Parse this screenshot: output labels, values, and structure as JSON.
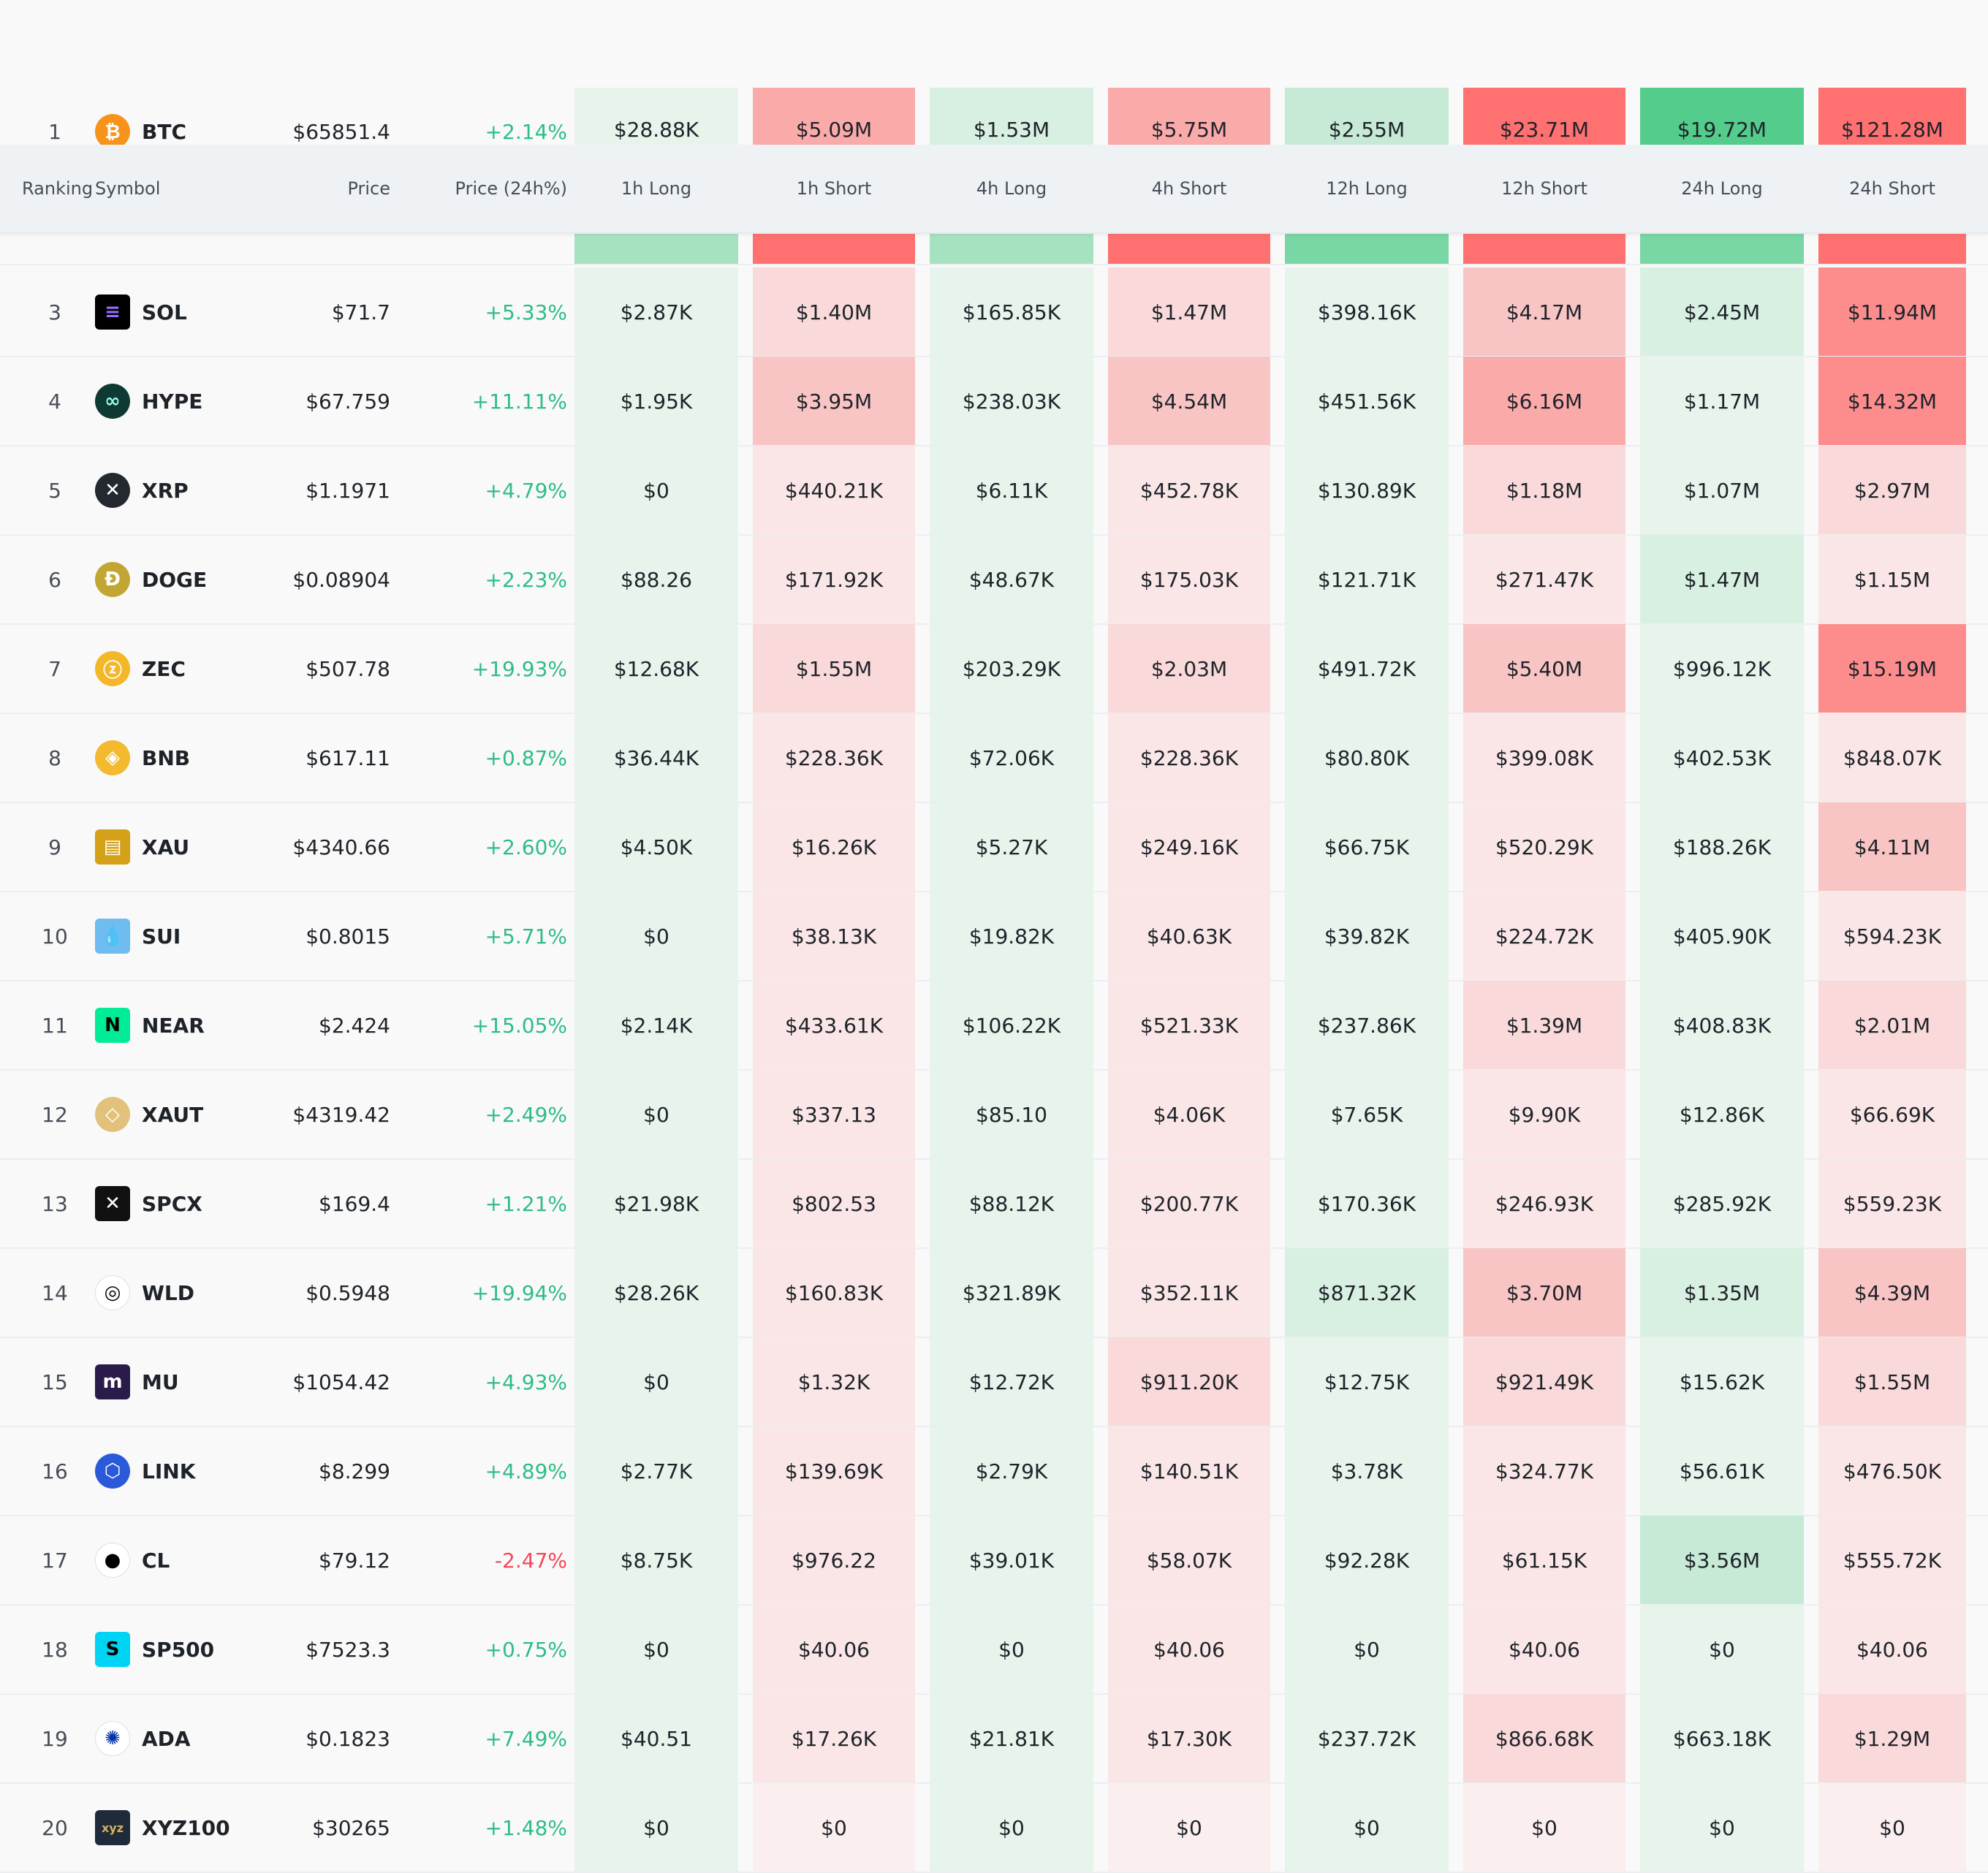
{
  "columns": {
    "ranking": "Ranking",
    "symbol": "Symbol",
    "price": "Price",
    "change": "Price (24h%)",
    "h1_long": "1h Long",
    "h1_short": "1h Short",
    "h4_long": "4h Long",
    "h4_short": "4h Short",
    "h12_long": "12h Long",
    "h12_short": "12h Short",
    "h24_long": "24h Long",
    "h24_short": "24h Short"
  },
  "colors": {
    "positive": "#2ebd85",
    "negative": "#f6465d",
    "long_light": "#e8f5ee",
    "short_light": "#fce8e8",
    "long_strong": "#54cd8c",
    "short_strong": "#ff7070"
  },
  "rows": [
    {
      "rank": "1",
      "symbol": "BTC",
      "icon": "bitcoin-icon",
      "price": "$65851.4",
      "change": "+2.14%",
      "dir": "up",
      "values": [
        "$28.88K",
        "$5.09M",
        "$1.53M",
        "$5.75M",
        "$2.55M",
        "$23.71M",
        "$19.72M",
        "$121.28M"
      ],
      "levels": [
        1,
        4,
        2,
        4,
        3,
        6,
        6,
        6
      ]
    },
    {
      "rank": "",
      "symbol": "",
      "icon": "ethereum-icon",
      "price": "",
      "change": "",
      "dir": "up",
      "values": [
        "",
        "",
        "",
        "",
        "",
        "",
        "",
        ""
      ],
      "levels": [
        4,
        6,
        4,
        6,
        5,
        6,
        5,
        6
      ]
    },
    {
      "rank": "3",
      "symbol": "SOL",
      "icon": "solana-icon",
      "price": "$71.7",
      "change": "+5.33%",
      "dir": "up",
      "values": [
        "$2.87K",
        "$1.40M",
        "$165.85K",
        "$1.47M",
        "$398.16K",
        "$4.17M",
        "$2.45M",
        "$11.94M"
      ],
      "levels": [
        1,
        2,
        1,
        2,
        1,
        3,
        2,
        5
      ]
    },
    {
      "rank": "4",
      "symbol": "HYPE",
      "icon": "hyperliquid-icon",
      "price": "$67.759",
      "change": "+11.11%",
      "dir": "up",
      "values": [
        "$1.95K",
        "$3.95M",
        "$238.03K",
        "$4.54M",
        "$451.56K",
        "$6.16M",
        "$1.17M",
        "$14.32M"
      ],
      "levels": [
        1,
        3,
        1,
        3,
        1,
        4,
        1,
        5
      ]
    },
    {
      "rank": "5",
      "symbol": "XRP",
      "icon": "xrp-icon",
      "price": "$1.1971",
      "change": "+4.79%",
      "dir": "up",
      "values": [
        "$0",
        "$440.21K",
        "$6.11K",
        "$452.78K",
        "$130.89K",
        "$1.18M",
        "$1.07M",
        "$2.97M"
      ],
      "levels": [
        1,
        1,
        1,
        1,
        1,
        2,
        1,
        2
      ]
    },
    {
      "rank": "6",
      "symbol": "DOGE",
      "icon": "dogecoin-icon",
      "price": "$0.08904",
      "change": "+2.23%",
      "dir": "up",
      "values": [
        "$88.26",
        "$171.92K",
        "$48.67K",
        "$175.03K",
        "$121.71K",
        "$271.47K",
        "$1.47M",
        "$1.15M"
      ],
      "levels": [
        1,
        1,
        1,
        1,
        1,
        1,
        2,
        1
      ]
    },
    {
      "rank": "7",
      "symbol": "ZEC",
      "icon": "zcash-icon",
      "price": "$507.78",
      "change": "+19.93%",
      "dir": "up",
      "values": [
        "$12.68K",
        "$1.55M",
        "$203.29K",
        "$2.03M",
        "$491.72K",
        "$5.40M",
        "$996.12K",
        "$15.19M"
      ],
      "levels": [
        1,
        2,
        1,
        2,
        1,
        3,
        1,
        5
      ]
    },
    {
      "rank": "8",
      "symbol": "BNB",
      "icon": "bnb-icon",
      "price": "$617.11",
      "change": "+0.87%",
      "dir": "up",
      "values": [
        "$36.44K",
        "$228.36K",
        "$72.06K",
        "$228.36K",
        "$80.80K",
        "$399.08K",
        "$402.53K",
        "$848.07K"
      ],
      "levels": [
        1,
        1,
        1,
        1,
        1,
        1,
        1,
        1
      ]
    },
    {
      "rank": "9",
      "symbol": "XAU",
      "icon": "gold-bars-icon",
      "price": "$4340.66",
      "change": "+2.60%",
      "dir": "up",
      "values": [
        "$4.50K",
        "$16.26K",
        "$5.27K",
        "$249.16K",
        "$66.75K",
        "$520.29K",
        "$188.26K",
        "$4.11M"
      ],
      "levels": [
        1,
        1,
        1,
        1,
        1,
        1,
        1,
        3
      ]
    },
    {
      "rank": "10",
      "symbol": "SUI",
      "icon": "sui-drop-icon",
      "price": "$0.8015",
      "change": "+5.71%",
      "dir": "up",
      "values": [
        "$0",
        "$38.13K",
        "$19.82K",
        "$40.63K",
        "$39.82K",
        "$224.72K",
        "$405.90K",
        "$594.23K"
      ],
      "levels": [
        1,
        1,
        1,
        1,
        1,
        1,
        1,
        1
      ]
    },
    {
      "rank": "11",
      "symbol": "NEAR",
      "icon": "near-icon",
      "price": "$2.424",
      "change": "+15.05%",
      "dir": "up",
      "values": [
        "$2.14K",
        "$433.61K",
        "$106.22K",
        "$521.33K",
        "$237.86K",
        "$1.39M",
        "$408.83K",
        "$2.01M"
      ],
      "levels": [
        1,
        1,
        1,
        1,
        1,
        2,
        1,
        2
      ]
    },
    {
      "rank": "12",
      "symbol": "XAUT",
      "icon": "tether-gold-icon",
      "price": "$4319.42",
      "change": "+2.49%",
      "dir": "up",
      "values": [
        "$0",
        "$337.13",
        "$85.10",
        "$4.06K",
        "$7.65K",
        "$9.90K",
        "$12.86K",
        "$66.69K"
      ],
      "levels": [
        1,
        1,
        1,
        1,
        1,
        1,
        1,
        1
      ]
    },
    {
      "rank": "13",
      "symbol": "SPCX",
      "icon": "spacex-icon",
      "price": "$169.4",
      "change": "+1.21%",
      "dir": "up",
      "values": [
        "$21.98K",
        "$802.53",
        "$88.12K",
        "$200.77K",
        "$170.36K",
        "$246.93K",
        "$285.92K",
        "$559.23K"
      ],
      "levels": [
        1,
        1,
        1,
        1,
        1,
        1,
        1,
        1
      ]
    },
    {
      "rank": "14",
      "symbol": "WLD",
      "icon": "worldcoin-icon",
      "price": "$0.5948",
      "change": "+19.94%",
      "dir": "up",
      "values": [
        "$28.26K",
        "$160.83K",
        "$321.89K",
        "$352.11K",
        "$871.32K",
        "$3.70M",
        "$1.35M",
        "$4.39M"
      ],
      "levels": [
        1,
        1,
        1,
        1,
        2,
        3,
        2,
        3
      ]
    },
    {
      "rank": "15",
      "symbol": "MU",
      "icon": "micron-icon",
      "price": "$1054.42",
      "change": "+4.93%",
      "dir": "up",
      "values": [
        "$0",
        "$1.32K",
        "$12.72K",
        "$911.20K",
        "$12.75K",
        "$921.49K",
        "$15.62K",
        "$1.55M"
      ],
      "levels": [
        1,
        1,
        1,
        2,
        1,
        2,
        1,
        2
      ]
    },
    {
      "rank": "16",
      "symbol": "LINK",
      "icon": "chainlink-icon",
      "price": "$8.299",
      "change": "+4.89%",
      "dir": "up",
      "values": [
        "$2.77K",
        "$139.69K",
        "$2.79K",
        "$140.51K",
        "$3.78K",
        "$324.77K",
        "$56.61K",
        "$476.50K"
      ],
      "levels": [
        1,
        1,
        1,
        1,
        1,
        1,
        1,
        1
      ]
    },
    {
      "rank": "17",
      "symbol": "CL",
      "icon": "oil-drop-icon",
      "price": "$79.12",
      "change": "-2.47%",
      "dir": "down",
      "values": [
        "$8.75K",
        "$976.22",
        "$39.01K",
        "$58.07K",
        "$92.28K",
        "$61.15K",
        "$3.56M",
        "$555.72K"
      ],
      "levels": [
        1,
        1,
        1,
        1,
        1,
        1,
        3,
        1
      ]
    },
    {
      "rank": "18",
      "symbol": "SP500",
      "icon": "sp500-icon",
      "price": "$7523.3",
      "change": "+0.75%",
      "dir": "up",
      "values": [
        "$0",
        "$40.06",
        "$0",
        "$40.06",
        "$0",
        "$40.06",
        "$0",
        "$40.06"
      ],
      "levels": [
        1,
        1,
        1,
        1,
        1,
        1,
        1,
        1
      ]
    },
    {
      "rank": "19",
      "symbol": "ADA",
      "icon": "cardano-icon",
      "price": "$0.1823",
      "change": "+7.49%",
      "dir": "up",
      "values": [
        "$40.51",
        "$17.26K",
        "$21.81K",
        "$17.30K",
        "$237.72K",
        "$866.68K",
        "$663.18K",
        "$1.29M"
      ],
      "levels": [
        1,
        1,
        1,
        1,
        1,
        2,
        1,
        2
      ]
    },
    {
      "rank": "20",
      "symbol": "XYZ100",
      "icon": "xyz-icon",
      "price": "$30265",
      "change": "+1.48%",
      "dir": "up",
      "values": [
        "$0",
        "$0",
        "$0",
        "$0",
        "$0",
        "$0",
        "$0",
        "$0"
      ],
      "levels": [
        1,
        0,
        1,
        0,
        1,
        0,
        1,
        0
      ]
    }
  ]
}
